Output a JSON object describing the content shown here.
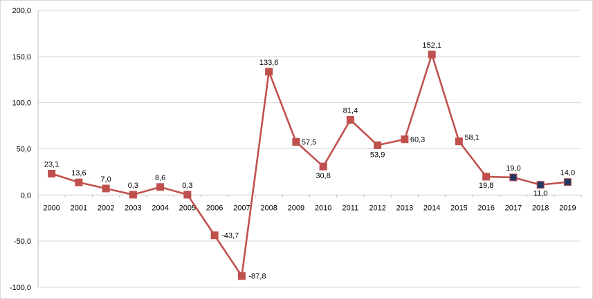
{
  "chart_data": {
    "type": "line",
    "title": "",
    "xlabel": "",
    "ylabel": "",
    "ylim": [
      -100,
      200
    ],
    "yticks": [
      -100,
      -50,
      0,
      50,
      100,
      150,
      200
    ],
    "ytick_labels": [
      "-100,0",
      "-50,0",
      "0,0",
      "50,0",
      "100,0",
      "150,0",
      "200,0"
    ],
    "grid": "horizontal",
    "legend": "none",
    "categories": [
      "2000",
      "2001",
      "2002",
      "2003",
      "2004",
      "2005",
      "2006",
      "2007",
      "2008",
      "2009",
      "2010",
      "2011",
      "2012",
      "2013",
      "2014",
      "2015",
      "2016",
      "2017",
      "2018",
      "2019"
    ],
    "series": [
      {
        "values": [
          23.1,
          13.6,
          7.0,
          0.3,
          8.6,
          0.3,
          -43.7,
          -87.8,
          133.6,
          57.5,
          30.8,
          81.4,
          53.9,
          60.3,
          152.1,
          58.1,
          19.8,
          19.0,
          11.0,
          14.0
        ],
        "labels": [
          "23,1",
          "13,6",
          "7,0",
          "0,3",
          "8,6",
          "0,3",
          "-43,7",
          "-87,8",
          "133,6",
          "57,5",
          "30,8",
          "81,4",
          "53,9",
          "60,3",
          "152,1",
          "58,1",
          "19,8",
          "19,0",
          "11,0",
          "14,0"
        ],
        "line_color": "#c0504d",
        "marker_colors": [
          "#c0504d",
          "#c0504d",
          "#c0504d",
          "#c0504d",
          "#c0504d",
          "#c0504d",
          "#c0504d",
          "#c0504d",
          "#c0504d",
          "#c0504d",
          "#c0504d",
          "#c0504d",
          "#c0504d",
          "#c0504d",
          "#c0504d",
          "#c0504d",
          "#c0504d",
          "#1f3864",
          "#1f3864",
          "#1f3864"
        ]
      }
    ]
  },
  "colors": {
    "grid": "#d9d9d9",
    "axis": "#bfbfbf",
    "marker_edge": "#c0504d"
  }
}
